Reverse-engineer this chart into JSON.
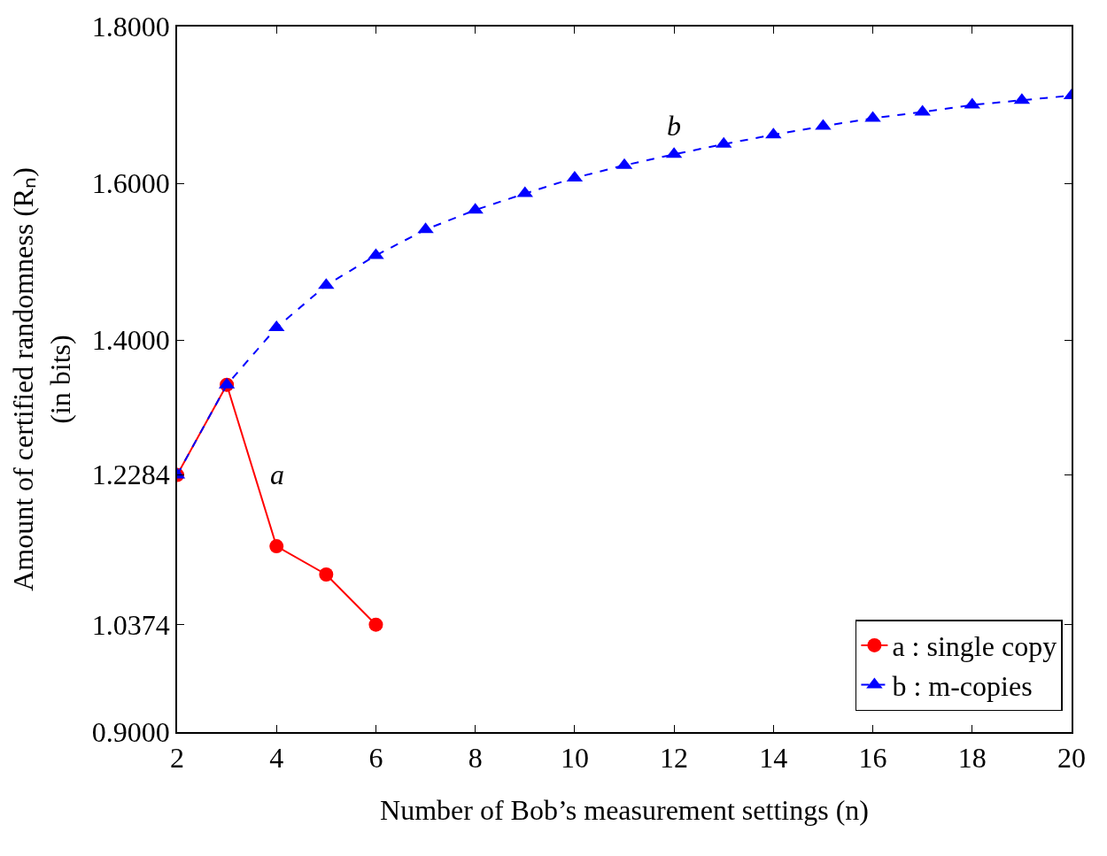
{
  "chart_data": {
    "type": "line",
    "xlabel": "Number of Bob’s measurement settings (n)",
    "ylabel": "Amount of certified randomness (Rₙ)\n(in bits)",
    "xlim": [
      2,
      20
    ],
    "xticks": [
      2,
      4,
      6,
      8,
      10,
      12,
      14,
      16,
      18,
      20
    ],
    "ylim": [
      0.9,
      1.8
    ],
    "yticks": [
      {
        "value": 0.9,
        "label": "0.9000"
      },
      {
        "value": 1.0374,
        "label": "1.0374"
      },
      {
        "value": 1.2284,
        "label": "1.2284"
      },
      {
        "value": 1.4,
        "label": "1.4000"
      },
      {
        "value": 1.6,
        "label": "1.6000"
      },
      {
        "value": 1.8,
        "label": "1.8000"
      }
    ],
    "legend": "bottom right",
    "series": [
      {
        "name": "a : single copy",
        "color": "#ff0000",
        "marker": "circle",
        "line_style": "solid",
        "x": [
          2,
          3,
          4,
          5,
          6
        ],
        "values": [
          1.228,
          1.343,
          1.137,
          1.101,
          1.037
        ]
      },
      {
        "name": "b : m-copies",
        "color": "#0000ff",
        "marker": "triangle",
        "line_style": "dashed",
        "x": [
          2,
          3,
          4,
          5,
          6,
          7,
          8,
          9,
          10,
          11,
          12,
          13,
          14,
          15,
          16,
          17,
          18,
          19,
          20
        ],
        "values": [
          1.228,
          1.343,
          1.416,
          1.47,
          1.508,
          1.541,
          1.566,
          1.587,
          1.607,
          1.623,
          1.637,
          1.65,
          1.662,
          1.673,
          1.683,
          1.691,
          1.7,
          1.706,
          1.712
        ]
      }
    ],
    "annotations": [
      "a",
      "b"
    ]
  }
}
